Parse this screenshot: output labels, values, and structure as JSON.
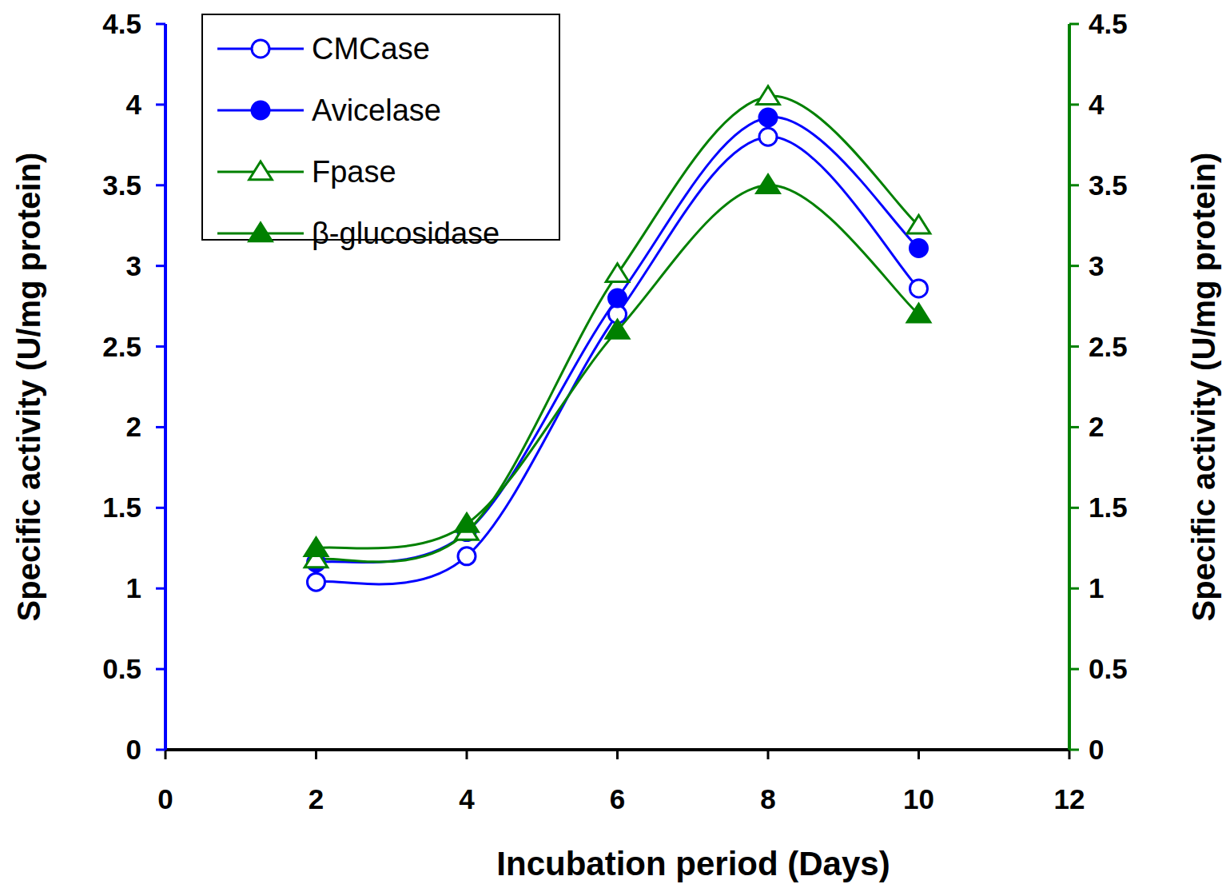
{
  "chart_data": {
    "type": "line",
    "x_label": "Incubation period (Days)",
    "y_label": "Specific activity (U/mg protein)",
    "y2_label": "Specific activity (U/mg protein)",
    "x": [
      2,
      4,
      6,
      8,
      10
    ],
    "xlim": [
      0,
      12
    ],
    "xticks": [
      0,
      2,
      4,
      6,
      8,
      10,
      12
    ],
    "ylim": [
      0,
      4.5
    ],
    "yticks": [
      0,
      0.5,
      1,
      1.5,
      2,
      2.5,
      3,
      3.5,
      4,
      4.5
    ],
    "y2lim": [
      0,
      4.5
    ],
    "y2ticks": [
      0,
      0.5,
      1,
      1.5,
      2,
      2.5,
      3,
      3.5,
      4,
      4.5
    ],
    "legend": "upper left",
    "series": [
      {
        "name": "CMCase",
        "color": "#0000ff",
        "marker": "circle-open",
        "values": [
          1.04,
          1.2,
          2.7,
          3.8,
          2.86
        ]
      },
      {
        "name": "Avicelase",
        "color": "#0000ff",
        "marker": "circle-filled",
        "values": [
          1.16,
          1.35,
          2.8,
          3.92,
          3.11
        ]
      },
      {
        "name": "Fpase",
        "color": "#008000",
        "marker": "triangle-open",
        "axis": "y2",
        "values": [
          1.18,
          1.35,
          2.95,
          4.05,
          3.25
        ]
      },
      {
        "name": "β-glucosidase",
        "color": "#008000",
        "marker": "triangle-filled",
        "axis": "y2",
        "values": [
          1.25,
          1.4,
          2.6,
          3.5,
          2.7
        ]
      }
    ]
  }
}
